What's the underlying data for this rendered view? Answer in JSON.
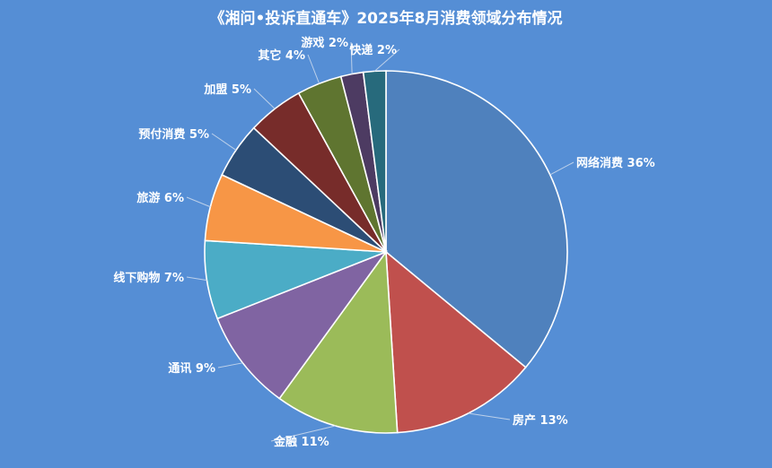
{
  "chart_data": {
    "type": "pie",
    "title": "《湘问•投诉直通车》2025年8月消费领域分布情况",
    "categories": [
      "网络消费",
      "房产",
      "金融",
      "通讯",
      "线下购物",
      "旅游",
      "预付消费",
      "加盟",
      "其它",
      "游戏",
      "快递"
    ],
    "values": [
      36,
      13,
      11,
      9,
      7,
      6,
      5,
      5,
      4,
      2,
      2
    ],
    "labels": [
      "网络消费 36%",
      "房产 13%",
      "金融 11%",
      "通讯 9%",
      "线下购物 7%",
      "旅游 6%",
      "预付消费 5%",
      "加盟 5%",
      "其它 4%",
      "游戏 2%",
      "快递 2%"
    ],
    "colors": [
      "#4f81bd",
      "#c0504d",
      "#9bbb59",
      "#8064a2",
      "#4bacc6",
      "#f79646",
      "#2c4d75",
      "#772c2a",
      "#5f7530",
      "#4d3b62",
      "#276a7c"
    ],
    "legend": "none",
    "grid": false
  }
}
